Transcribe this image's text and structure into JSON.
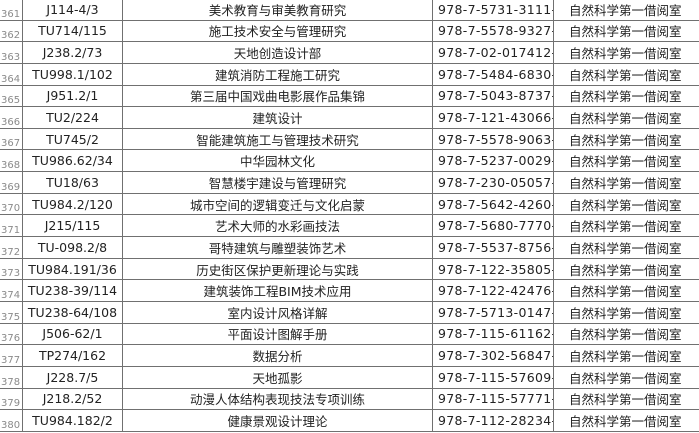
{
  "rows": [
    {
      "num": "361",
      "call": "J114-4/3",
      "title": "美术教育与审美教育研究",
      "isbn": "978-7-5731-3111-9",
      "location": "自然科学第一借阅室"
    },
    {
      "num": "362",
      "call": "TU714/115",
      "title": "施工技术安全与管理研究",
      "isbn": "978-7-5578-9327-9",
      "location": "自然科学第一借阅室"
    },
    {
      "num": "363",
      "call": "J238.2/73",
      "title": "天地创造设计部",
      "isbn": "978-7-02-017412-6",
      "location": "自然科学第一借阅室"
    },
    {
      "num": "364",
      "call": "TU998.1/102",
      "title": "建筑消防工程施工研究",
      "isbn": "978-7-5484-6830-1",
      "location": "自然科学第一借阅室"
    },
    {
      "num": "365",
      "call": "J951.2/1",
      "title": "第三届中国戏曲电影展作品集锦",
      "isbn": "978-7-5043-8737-0",
      "location": "自然科学第一借阅室"
    },
    {
      "num": "366",
      "call": "TU2/224",
      "title": "建筑设计",
      "isbn": "978-7-121-43066-4",
      "location": "自然科学第一借阅室"
    },
    {
      "num": "367",
      "call": "TU745/2",
      "title": "智能建筑施工与管理技术研究",
      "isbn": "978-7-5578-9063-6",
      "location": "自然科学第一借阅室"
    },
    {
      "num": "368",
      "call": "TU986.62/34",
      "title": "中华园林文化",
      "isbn": "978-7-5237-0029-7",
      "location": "自然科学第一借阅室"
    },
    {
      "num": "369",
      "call": "TU18/63",
      "title": "智慧楼宇建设与管理研究",
      "isbn": "978-7-230-05057-9",
      "location": "自然科学第一借阅室"
    },
    {
      "num": "370",
      "call": "TU984.2/120",
      "title": "城市空间的逻辑变迁与文化启蒙",
      "isbn": "978-7-5642-4260-2",
      "location": "自然科学第一借阅室"
    },
    {
      "num": "371",
      "call": "J215/115",
      "title": "艺术大师的水彩画技法",
      "isbn": "978-7-5680-7770-5",
      "location": "自然科学第一借阅室"
    },
    {
      "num": "372",
      "call": "TU-098.2/8",
      "title": "哥特建筑与雕塑装饰艺术",
      "isbn": "978-7-5537-8756-5",
      "location": "自然科学第一借阅室"
    },
    {
      "num": "373",
      "call": "TU984.191/36",
      "title": "历史街区保护更新理论与实践",
      "isbn": "978-7-122-35805-9",
      "location": "自然科学第一借阅室"
    },
    {
      "num": "374",
      "call": "TU238-39/114",
      "title": "建筑装饰工程BIM技术应用",
      "isbn": "978-7-122-42476-1",
      "location": "自然科学第一借阅室"
    },
    {
      "num": "375",
      "call": "TU238-64/108",
      "title": "室内设计风格详解",
      "isbn": "978-7-5713-0147-7",
      "location": "自然科学第一借阅室"
    },
    {
      "num": "376",
      "call": "J506-62/1",
      "title": "平面设计图解手册",
      "isbn": "978-7-115-61162-8",
      "location": "自然科学第一借阅室"
    },
    {
      "num": "377",
      "call": "TP274/162",
      "title": "数据分析",
      "isbn": "978-7-302-56847-6",
      "location": "自然科学第一借阅室"
    },
    {
      "num": "378",
      "call": "J228.7/5",
      "title": "天地孤影",
      "isbn": "978-7-115-57609-5",
      "location": "自然科学第一借阅室"
    },
    {
      "num": "379",
      "call": "J218.2/52",
      "title": "动漫人体结构表现技法专项训练",
      "isbn": "978-7-115-57771-9",
      "location": "自然科学第一借阅室"
    },
    {
      "num": "380",
      "call": "TU984.182/2",
      "title": "健康景观设计理论",
      "isbn": "978-7-112-28234-0",
      "location": "自然科学第一借阅室"
    }
  ]
}
